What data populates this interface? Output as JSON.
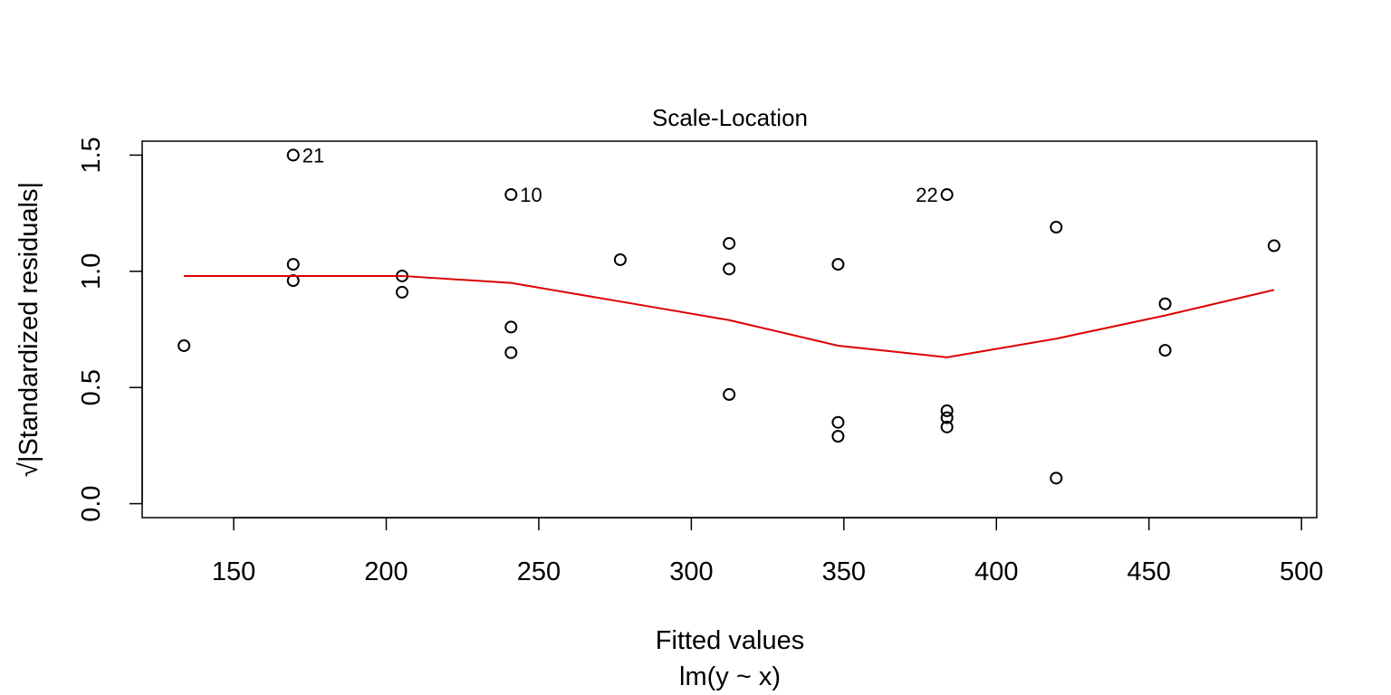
{
  "chart_data": {
    "type": "scatter",
    "title": "Scale-Location",
    "xlabel": "Fitted values",
    "subtitle": "lm(y ~ x)",
    "ylabel": "√|Standardized residuals|",
    "xlim": [
      120,
      505
    ],
    "ylim": [
      -0.06,
      1.56
    ],
    "x_ticks": [
      150,
      200,
      250,
      300,
      350,
      400,
      450,
      500
    ],
    "y_ticks": [
      0.0,
      0.5,
      1.0,
      1.5
    ],
    "x_tick_labels": [
      "150",
      "200",
      "250",
      "300",
      "350",
      "400",
      "450",
      "500"
    ],
    "y_tick_labels": [
      "0.0",
      "0.5",
      "1.0",
      "1.5"
    ],
    "grid": false,
    "point_color": "#000000",
    "line_color": "#dd0000",
    "points": [
      {
        "x": 133.7,
        "y": 0.68
      },
      {
        "x": 169.5,
        "y": 1.5,
        "label": "21"
      },
      {
        "x": 169.5,
        "y": 1.03
      },
      {
        "x": 169.5,
        "y": 0.96
      },
      {
        "x": 205.2,
        "y": 0.98
      },
      {
        "x": 205.2,
        "y": 0.91
      },
      {
        "x": 240.9,
        "y": 1.33,
        "label": "10"
      },
      {
        "x": 240.9,
        "y": 0.76
      },
      {
        "x": 240.9,
        "y": 0.65
      },
      {
        "x": 276.7,
        "y": 1.05
      },
      {
        "x": 312.4,
        "y": 1.12
      },
      {
        "x": 312.4,
        "y": 1.01
      },
      {
        "x": 312.4,
        "y": 0.47
      },
      {
        "x": 348.1,
        "y": 1.03
      },
      {
        "x": 348.1,
        "y": 0.35
      },
      {
        "x": 348.1,
        "y": 0.29
      },
      {
        "x": 383.8,
        "y": 1.33,
        "label": "22"
      },
      {
        "x": 383.8,
        "y": 0.4
      },
      {
        "x": 383.8,
        "y": 0.37
      },
      {
        "x": 383.8,
        "y": 0.33
      },
      {
        "x": 419.6,
        "y": 1.19
      },
      {
        "x": 419.6,
        "y": 0.11
      },
      {
        "x": 455.3,
        "y": 0.86
      },
      {
        "x": 455.3,
        "y": 0.66
      },
      {
        "x": 491.0,
        "y": 1.11
      }
    ],
    "smooth_line": {
      "x": [
        133.7,
        169.5,
        205.2,
        240.9,
        276.7,
        312.4,
        348.1,
        383.8,
        419.6,
        455.3,
        491.0
      ],
      "y": [
        0.98,
        0.98,
        0.98,
        0.95,
        0.87,
        0.79,
        0.68,
        0.63,
        0.71,
        0.81,
        0.92
      ]
    }
  }
}
